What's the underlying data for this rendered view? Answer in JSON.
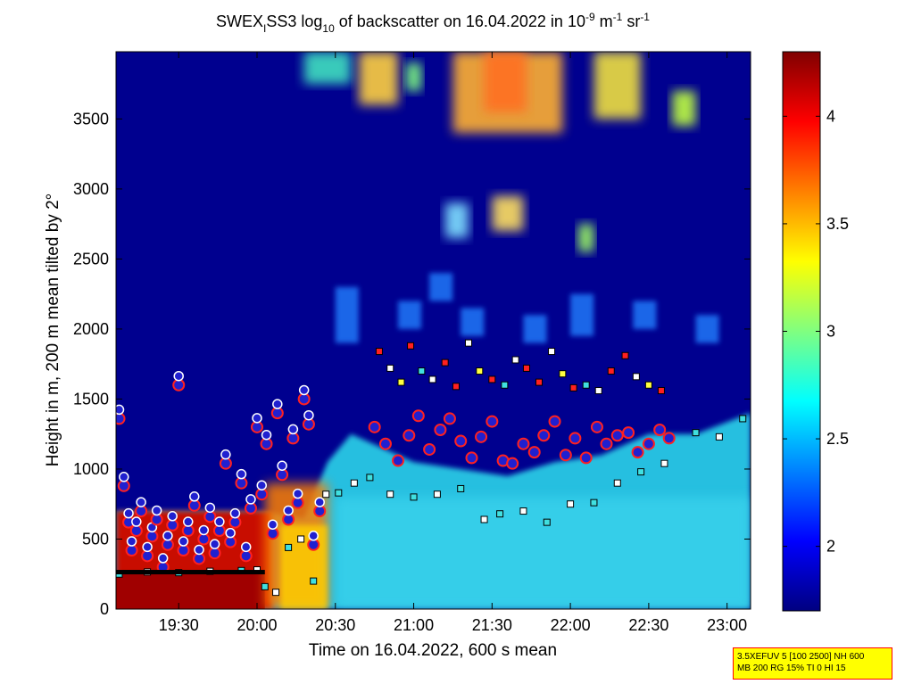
{
  "colors": {
    "background_fill": "#00008f",
    "aerosol_fill": "#26bfe0",
    "marker_cloud_edge": "#2020d0",
    "marker_cloud_ring": "#ff2020",
    "infobox_bg": "#ffff00",
    "infobox_border": "#ff0000"
  },
  "chart_data": {
    "type": "heatmap",
    "title_parts": {
      "a": "SWEX",
      "a_sub": "I",
      "b": "SS3 log",
      "b_sub": "10",
      "c": " of backscatter on 16.04.2022 in 10",
      "c_sup": "-9",
      "d": " m",
      "d_sup": "-1",
      "e": " sr",
      "e_sup": "-1"
    },
    "xlabel": "Time on 16.04.2022, 600 s mean",
    "ylabel": "Height in m, 200 m mean tilted by 2°",
    "xlim_hours": [
      19.1,
      23.15
    ],
    "x_ticks": [
      {
        "value": 19.5,
        "label": "19:30"
      },
      {
        "value": 20.0,
        "label": "20:00"
      },
      {
        "value": 20.5,
        "label": "20:30"
      },
      {
        "value": 21.0,
        "label": "21:00"
      },
      {
        "value": 21.5,
        "label": "21:30"
      },
      {
        "value": 22.0,
        "label": "22:00"
      },
      {
        "value": 22.5,
        "label": "22:30"
      },
      {
        "value": 23.0,
        "label": "23:00"
      }
    ],
    "ylim": [
      0,
      3980
    ],
    "y_ticks": [
      {
        "value": 0,
        "label": "0"
      },
      {
        "value": 500,
        "label": "500"
      },
      {
        "value": 1000,
        "label": "1000"
      },
      {
        "value": 1500,
        "label": "1500"
      },
      {
        "value": 2000,
        "label": "2000"
      },
      {
        "value": 2500,
        "label": "2500"
      },
      {
        "value": 3000,
        "label": "3000"
      },
      {
        "value": 3500,
        "label": "3500"
      }
    ],
    "colorbar": {
      "range": [
        1.7,
        4.3
      ],
      "ticks": [
        {
          "value": 2,
          "label": "2"
        },
        {
          "value": 2.5,
          "label": "2.5"
        },
        {
          "value": 3,
          "label": "3"
        },
        {
          "value": 3.5,
          "label": "3.5"
        },
        {
          "value": 4,
          "label": "4"
        }
      ],
      "stops": [
        "#000080",
        "#0000ff",
        "#0080ff",
        "#00ffff",
        "#80ff80",
        "#ffff00",
        "#ff8000",
        "#ff0000",
        "#800000"
      ]
    },
    "cloud_base_early": {
      "t": [
        19.12,
        19.15,
        19.18,
        19.2,
        19.23,
        19.26,
        19.3,
        19.33,
        19.36,
        19.4,
        19.43,
        19.46,
        19.5,
        19.53,
        19.56,
        19.6,
        19.63,
        19.66,
        19.7,
        19.73,
        19.76,
        19.8,
        19.83,
        19.86,
        19.9,
        19.93,
        19.96,
        20.0,
        20.03,
        20.06,
        20.1,
        20.13,
        20.16,
        20.2,
        20.23,
        20.26,
        20.3,
        20.33,
        20.36,
        20.4
      ],
      "h": [
        1360,
        880,
        620,
        420,
        560,
        700,
        380,
        520,
        640,
        300,
        460,
        600,
        1600,
        420,
        560,
        740,
        360,
        500,
        660,
        400,
        560,
        1040,
        480,
        620,
        900,
        380,
        720,
        1300,
        820,
        1180,
        540,
        1400,
        960,
        640,
        1220,
        760,
        1500,
        1320,
        460,
        700
      ]
    },
    "cloud_layer_late": {
      "t": [
        20.75,
        20.82,
        20.9,
        20.97,
        21.03,
        21.1,
        21.17,
        21.23,
        21.3,
        21.37,
        21.43,
        21.5,
        21.57,
        21.63,
        21.7,
        21.77,
        21.83,
        21.9,
        21.97,
        22.03,
        22.1,
        22.17,
        22.23,
        22.3,
        22.37,
        22.43,
        22.5,
        22.57,
        22.63
      ],
      "h": [
        1300,
        1180,
        1060,
        1240,
        1380,
        1140,
        1280,
        1360,
        1200,
        1080,
        1230,
        1340,
        1060,
        1040,
        1180,
        1120,
        1240,
        1340,
        1100,
        1220,
        1080,
        1300,
        1180,
        1240,
        1260,
        1120,
        1180,
        1280,
        1220
      ]
    },
    "aerosol_top": {
      "t": [
        19.1,
        19.5,
        20.0,
        20.3,
        20.45,
        20.6,
        20.8,
        21.0,
        21.3,
        21.6,
        21.9,
        22.2,
        22.5,
        22.8,
        23.15
      ],
      "h": [
        700,
        700,
        700,
        650,
        1050,
        1250,
        1150,
        1050,
        1000,
        950,
        1050,
        1100,
        1250,
        1250,
        1400
      ]
    },
    "low_layer_markers": {
      "t": [
        19.12,
        19.3,
        19.5,
        19.7,
        19.9,
        20.0,
        20.05,
        20.12,
        20.2,
        20.28,
        20.36,
        20.44,
        20.52,
        20.62,
        20.72,
        20.85,
        21.0,
        21.15,
        21.3,
        21.45,
        21.55,
        21.7,
        21.85,
        22.0,
        22.15,
        22.3,
        22.45,
        22.6,
        22.8,
        22.95,
        23.1
      ],
      "h": [
        250,
        265,
        260,
        270,
        275,
        280,
        160,
        120,
        440,
        500,
        200,
        820,
        830,
        900,
        940,
        820,
        800,
        820,
        860,
        640,
        680,
        700,
        620,
        750,
        760,
        900,
        980,
        1040,
        1260,
        1230,
        1360
      ]
    },
    "high_scatter_markers": {
      "t": [
        20.78,
        20.85,
        20.92,
        20.98,
        21.05,
        21.12,
        21.2,
        21.27,
        21.35,
        21.42,
        21.5,
        21.58,
        21.65,
        21.72,
        21.8,
        21.88,
        21.95,
        22.02,
        22.1,
        22.18,
        22.26,
        22.35,
        22.42,
        22.5,
        22.58
      ],
      "h": [
        1840,
        1720,
        1620,
        1880,
        1700,
        1640,
        1760,
        1590,
        1900,
        1700,
        1640,
        1600,
        1780,
        1720,
        1620,
        1840,
        1680,
        1580,
        1600,
        1560,
        1700,
        1810,
        1660,
        1600,
        1560
      ]
    }
  },
  "infobox": {
    "line1": "3.5XEFUV 5 [100 2500] NH 600",
    "line2": "MB 200 RG 15% TI 0 HI 15"
  }
}
